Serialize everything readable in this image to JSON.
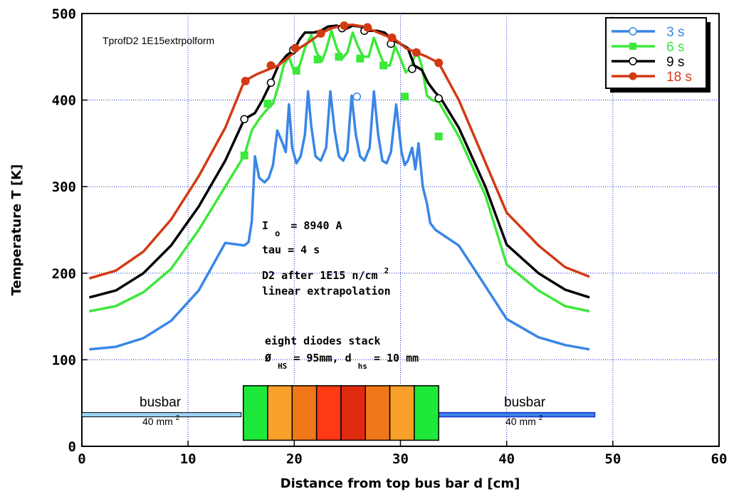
{
  "chart_data": {
    "type": "line",
    "title": "TprofD2 1E15extrpolform",
    "xlabel": "Distance from top bus bar d [cm]",
    "ylabel": "Temperature T [K]",
    "xlim": [
      0,
      60
    ],
    "ylim": [
      0,
      500
    ],
    "xticks": [
      "0",
      "10",
      "20",
      "30",
      "40",
      "50",
      "60"
    ],
    "yticks": [
      "0",
      "100",
      "200",
      "300",
      "400",
      "500"
    ],
    "grid": true,
    "legend": "top-right",
    "series": [
      {
        "name": "3 s",
        "color": "#3a86e8",
        "x": [
          0.7,
          3.2,
          5.8,
          8.4,
          11,
          13.5,
          15.3,
          15.7,
          16,
          16.3,
          16.7,
          17.2,
          17.6,
          18,
          18.4,
          18.9,
          19.2,
          19.5,
          19.8,
          20.2,
          20.6,
          21,
          21.3,
          21.6,
          22,
          22.5,
          23,
          23.4,
          23.8,
          24.2,
          24.6,
          25,
          25.4,
          25.8,
          26.2,
          26.6,
          27.1,
          27.5,
          27.9,
          28.3,
          28.7,
          29.1,
          29.6,
          30.1,
          30.4,
          30.7,
          31.1,
          31.4,
          31.7,
          32.1,
          32.5,
          32.8,
          33.3,
          35.5,
          38,
          40,
          43,
          45.5,
          47.8
        ],
        "y": [
          112,
          115,
          125,
          145,
          180,
          235,
          232,
          236,
          260,
          335,
          310,
          305,
          310,
          325,
          365,
          350,
          340,
          395,
          345,
          327,
          335,
          360,
          410,
          370,
          335,
          330,
          345,
          410,
          365,
          335,
          330,
          340,
          405,
          360,
          335,
          330,
          345,
          410,
          360,
          330,
          327,
          340,
          395,
          340,
          325,
          330,
          345,
          320,
          350,
          300,
          280,
          258,
          250,
          232,
          185,
          147,
          126,
          117,
          112
        ]
      },
      {
        "name": "6 s",
        "color": "#3de83a",
        "x": [
          0.7,
          3.2,
          5.8,
          8.4,
          11,
          13.5,
          15.3,
          16,
          16.8,
          17.5,
          18,
          18.6,
          19,
          19.5,
          20,
          20.5,
          21,
          21.6,
          22.1,
          22.6,
          23,
          23.5,
          24,
          24.5,
          25,
          25.5,
          26,
          26.5,
          27,
          27.5,
          28,
          28.5,
          29,
          29.5,
          30,
          30.5,
          31,
          31.5,
          32,
          32.5,
          33,
          33.6,
          35.5,
          38,
          40,
          43,
          45.5,
          47.8
        ],
        "y": [
          156,
          162,
          178,
          205,
          250,
          300,
          336,
          365,
          380,
          390,
          396,
          420,
          440,
          450,
          433,
          440,
          460,
          475,
          455,
          445,
          458,
          480,
          460,
          448,
          455,
          478,
          462,
          450,
          450,
          472,
          455,
          440,
          440,
          462,
          448,
          432,
          438,
          458,
          440,
          405,
          400,
          398,
          358,
          290,
          210,
          180,
          162,
          156
        ]
      },
      {
        "name": "9 s",
        "color": "#000000",
        "x": [
          0.7,
          3.2,
          5.8,
          8.4,
          11,
          13.5,
          15.3,
          16.3,
          17,
          17.8,
          18.5,
          19.3,
          20,
          20.5,
          21,
          21.8,
          22.5,
          23.2,
          24,
          24.8,
          25.5,
          26.2,
          27,
          27.8,
          28.5,
          29.2,
          30,
          30.7,
          31.3,
          32,
          32.6,
          33.2,
          33.8,
          35.5,
          38,
          40,
          43,
          45.5,
          47.8
        ],
        "y": [
          172,
          180,
          200,
          232,
          277,
          330,
          378,
          385,
          400,
          420,
          440,
          452,
          458,
          470,
          478,
          478,
          480,
          485,
          486,
          482,
          486,
          485,
          480,
          480,
          478,
          470,
          465,
          460,
          440,
          435,
          420,
          410,
          402,
          368,
          300,
          233,
          200,
          181,
          172
        ]
      },
      {
        "name": "18 s",
        "color": "#d23a14",
        "x": [
          0.7,
          3.2,
          5.8,
          8.4,
          11,
          13.5,
          15.3,
          16.5,
          17.5,
          18.5,
          19.5,
          20.5,
          21.5,
          22.5,
          23.5,
          24.5,
          25.5,
          26.5,
          27.5,
          28.5,
          29.5,
          30.5,
          31.5,
          32.5,
          33.6,
          35.5,
          38,
          40,
          43,
          45.5,
          47.8
        ],
        "y": [
          194,
          203,
          225,
          262,
          312,
          368,
          422,
          430,
          435,
          440,
          450,
          460,
          468,
          477,
          483,
          486,
          487,
          485,
          480,
          475,
          470,
          460,
          455,
          450,
          443,
          400,
          328,
          270,
          232,
          207,
          196
        ]
      }
    ],
    "annotations": [
      {
        "text": "TprofD2 1E15extrpolform"
      },
      {
        "text": "I",
        "sub": "o",
        "rest": "= 8940 A"
      },
      {
        "text": "tau = 4 s"
      },
      {
        "text": "D2 after 1E15 n/cm",
        "sup": "2"
      },
      {
        "text": "linear extrapolation"
      },
      {
        "text": "eight diodes stack"
      },
      {
        "text": "Ø",
        "sub1": "HS",
        "mid": " = 95mm, d",
        "sub2": "hs",
        "rest": " = 10 mm"
      }
    ],
    "busbar_left": {
      "label": "busbar",
      "area": "40 mm",
      "sup": "2"
    },
    "busbar_right": {
      "label": "busbar",
      "area": "40 mm",
      "sup": "2"
    },
    "diode_stack_colors": [
      "#1ee83a",
      "#f8a02a",
      "#f07818",
      "#ff3a14",
      "#e02a10",
      "#f07818",
      "#f8a02a",
      "#1ee83a"
    ]
  }
}
